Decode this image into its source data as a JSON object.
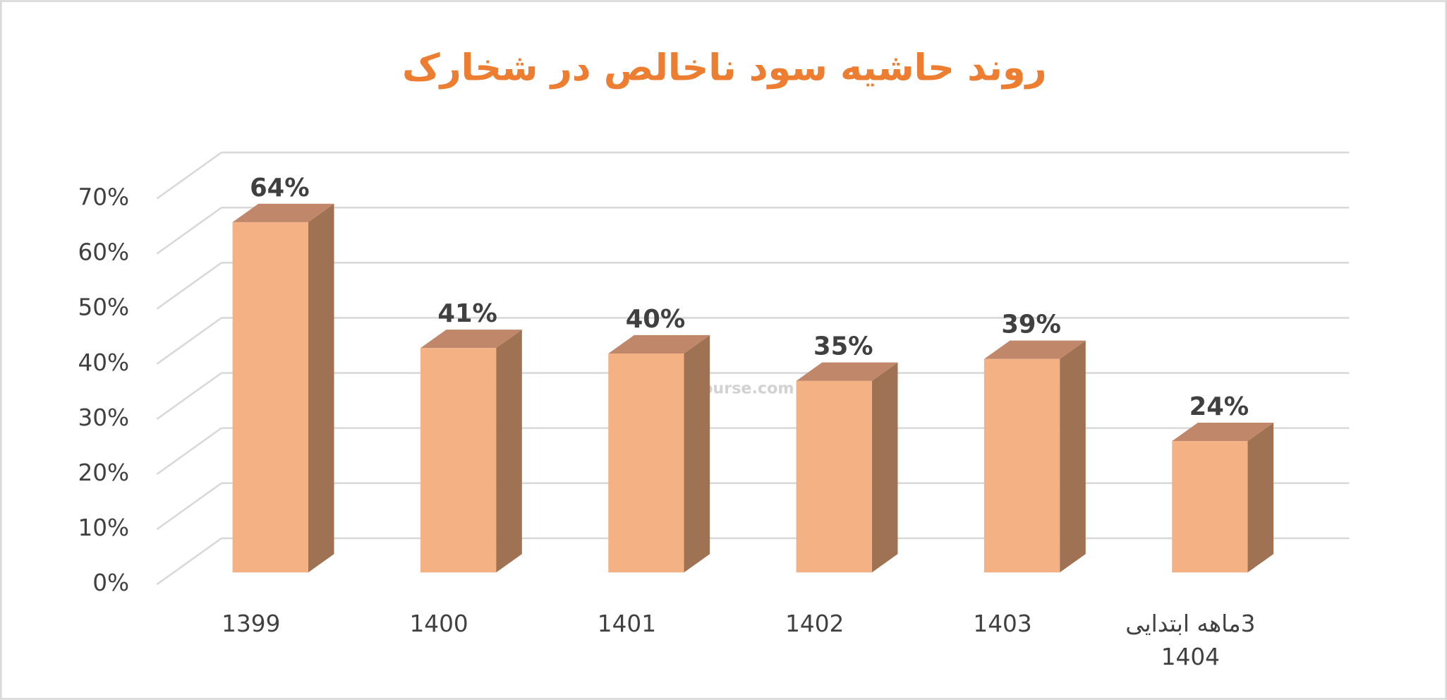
{
  "chart_data": {
    "type": "bar3d",
    "title": "روند حاشیه سود ناخالص در شخارک",
    "categories": [
      "1399",
      "1400",
      "1401",
      "1402",
      "1403",
      "3ماهه ابتدایی\n1404"
    ],
    "values": [
      64,
      41,
      40,
      35,
      39,
      24
    ],
    "value_labels": [
      "64%",
      "41%",
      "40%",
      "35%",
      "39%",
      "24%"
    ],
    "color": "#f4b183",
    "ylim": [
      0,
      70
    ],
    "yticks": [
      {
        "value": 0,
        "label": "0%"
      },
      {
        "value": 10,
        "label": "10%"
      },
      {
        "value": 20,
        "label": "20%"
      },
      {
        "value": 30,
        "label": "30%"
      },
      {
        "value": 40,
        "label": "40%"
      },
      {
        "value": 50,
        "label": "50%"
      },
      {
        "value": 60,
        "label": "60%"
      },
      {
        "value": 70,
        "label": "70%"
      }
    ],
    "grid": true,
    "watermark": "nabzebourse.com"
  }
}
